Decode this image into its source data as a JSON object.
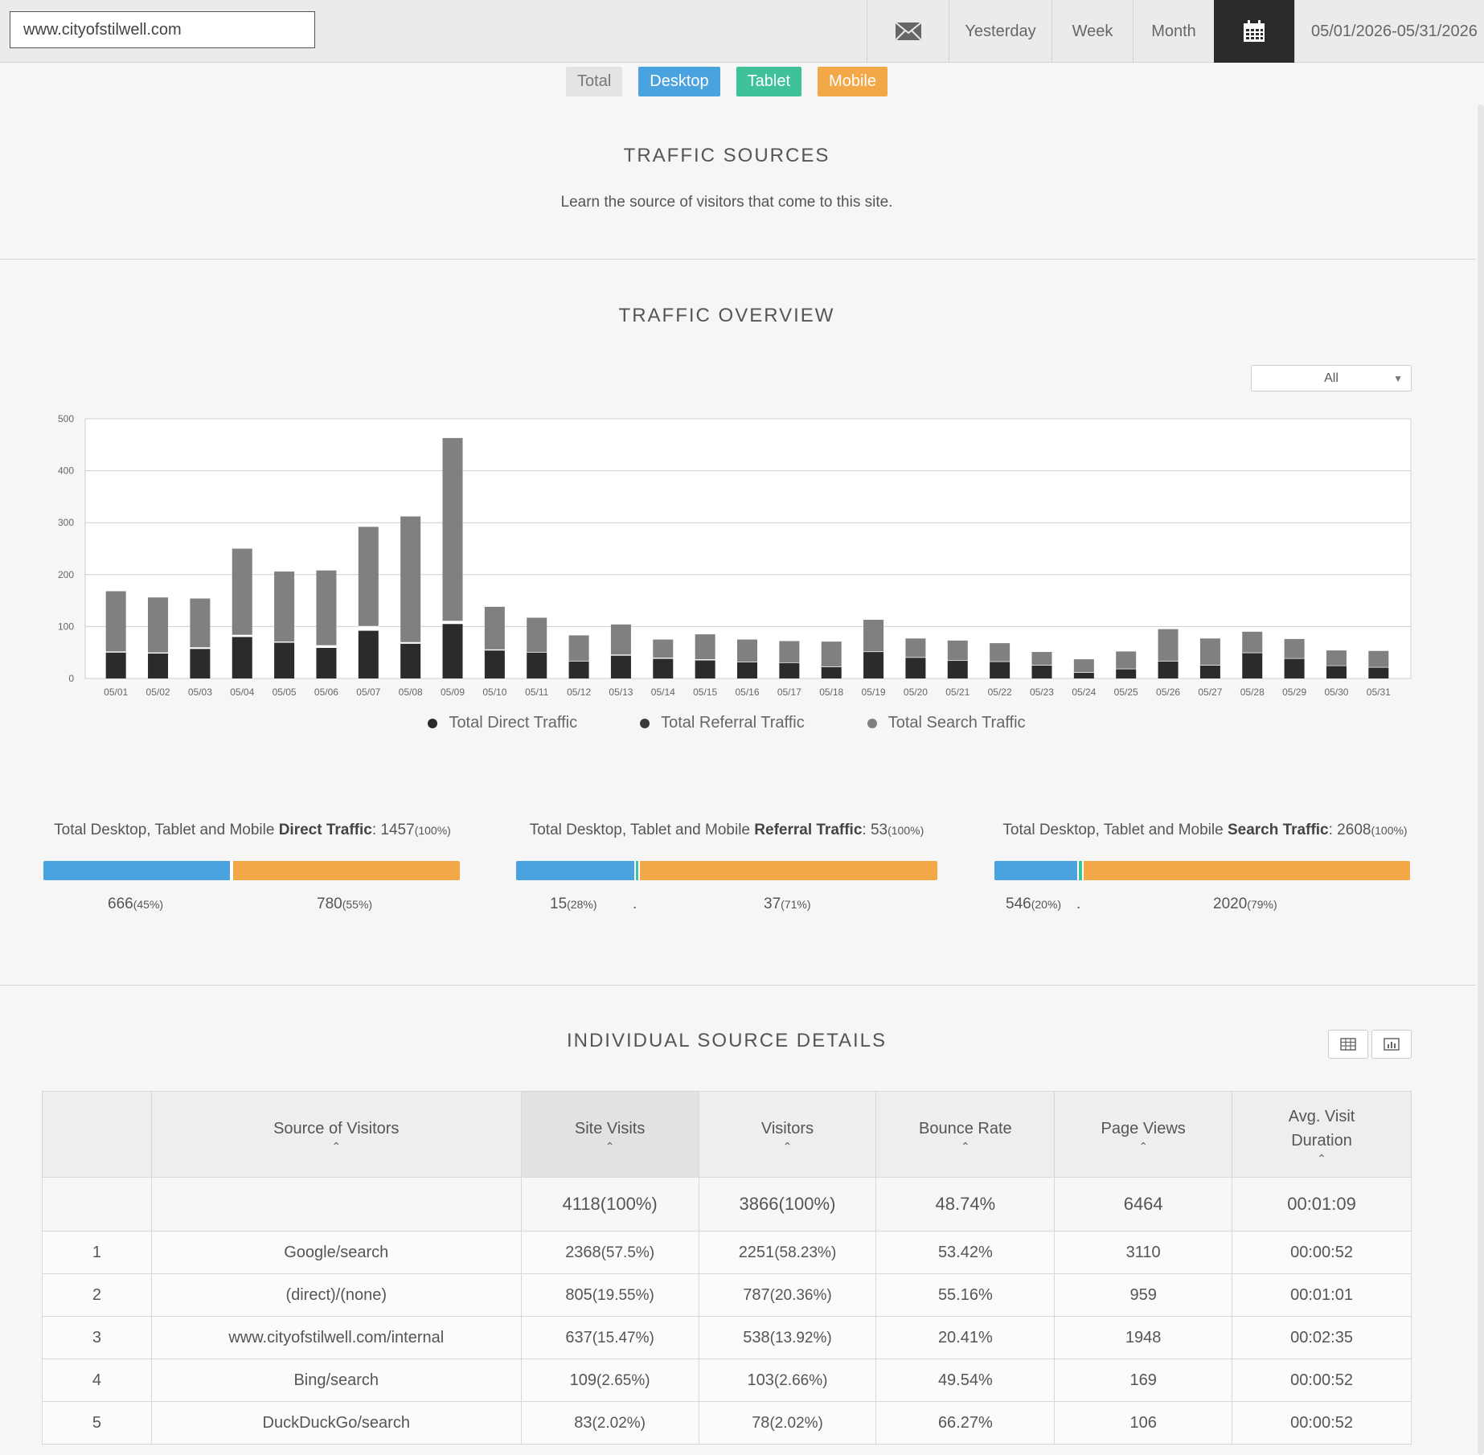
{
  "topbar": {
    "site_value": "www.cityofstilwell.com",
    "mail_icon": "mail-icon",
    "yesterday_label": "Yesterday",
    "week_label": "Week",
    "month_label": "Month",
    "calendar_icon": "calendar-icon",
    "date_range": "05/01/2026-05/31/2026"
  },
  "filters": {
    "total": "Total",
    "desktop": "Desktop",
    "tablet": "Tablet",
    "mobile": "Mobile"
  },
  "colors": {
    "desktop": "#4aa3df",
    "tablet": "#3fc19a",
    "mobile": "#f3a847",
    "direct": "#2b2b2b",
    "referral": "#ffffff",
    "search": "#808080"
  },
  "sources": {
    "title": "TRAFFIC  SOURCES",
    "subtitle": "Learn the source of visitors that come to this site."
  },
  "overview": {
    "title": "TRAFFIC  OVERVIEW",
    "select_value": "All"
  },
  "chart_data": {
    "type": "bar",
    "stacked": true,
    "categories": [
      "05/01",
      "05/02",
      "05/03",
      "05/04",
      "05/05",
      "05/06",
      "05/07",
      "05/08",
      "05/09",
      "05/10",
      "05/11",
      "05/12",
      "05/13",
      "05/14",
      "05/15",
      "05/16",
      "05/17",
      "05/18",
      "05/19",
      "05/20",
      "05/21",
      "05/22",
      "05/23",
      "05/24",
      "05/25",
      "05/26",
      "05/27",
      "05/28",
      "05/29",
      "05/30",
      "05/31"
    ],
    "series": [
      {
        "name": "Total Direct Traffic",
        "color": "#2b2b2b",
        "values": [
          50,
          48,
          57,
          80,
          69,
          59,
          92,
          67,
          105,
          54,
          50,
          33,
          44,
          38,
          35,
          31,
          30,
          22,
          51,
          40,
          34,
          32,
          25,
          11,
          18,
          33,
          25,
          49,
          38,
          24,
          21
        ]
      },
      {
        "name": "Total Referral Traffic",
        "color": "#ffffff",
        "values": [
          2,
          2,
          3,
          4,
          2,
          5,
          9,
          3,
          6,
          2,
          1,
          1,
          2,
          2,
          2,
          1,
          1,
          1,
          1,
          1,
          1,
          1,
          1,
          1,
          1,
          1,
          1,
          1,
          1,
          1,
          1
        ]
      },
      {
        "name": "Total Search Traffic",
        "color": "#808080",
        "values": [
          116,
          106,
          94,
          166,
          135,
          144,
          191,
          242,
          352,
          82,
          66,
          49,
          58,
          35,
          48,
          43,
          41,
          48,
          61,
          36,
          38,
          35,
          25,
          25,
          33,
          61,
          51,
          40,
          37,
          29,
          31
        ]
      }
    ],
    "ylim": [
      0,
      500
    ],
    "yticks": [
      0,
      100,
      200,
      300,
      400,
      500
    ],
    "grid": true,
    "legend": "bottom"
  },
  "summaries": [
    {
      "prefix": "Total Desktop, Tablet and Mobile ",
      "bold": "Direct Traffic",
      "value": ": 1457",
      "pct": "(100%)",
      "segments": [
        0.45,
        0.0,
        0.55
      ],
      "labels": [
        {
          "value": "666",
          "pct": "(45%)"
        },
        {
          "value": "",
          "pct": ""
        },
        {
          "value": "780",
          "pct": "(55%)"
        }
      ]
    },
    {
      "prefix": "Total Desktop, Tablet and Mobile ",
      "bold": "Referral Traffic",
      "value": ": 53",
      "pct": "(100%)",
      "segments": [
        0.28,
        0.01,
        0.71
      ],
      "labels": [
        {
          "value": "15",
          "pct": "(28%)"
        },
        {
          "value": ".",
          "pct": ""
        },
        {
          "value": "37",
          "pct": "(71%)"
        }
      ]
    },
    {
      "prefix": "Total Desktop, Tablet and Mobile ",
      "bold": "Search Traffic",
      "value": ": 2608",
      "pct": "(100%)",
      "segments": [
        0.2,
        0.01,
        0.79
      ],
      "labels": [
        {
          "value": "546",
          "pct": "(20%)"
        },
        {
          "value": ".",
          "pct": ""
        },
        {
          "value": "2020",
          "pct": "(79%)"
        }
      ]
    }
  ],
  "details": {
    "title": "INDIVIDUAL  SOURCE  DETAILS",
    "table_view_icon": "table-view-icon",
    "chart_view_icon": "chart-view-icon",
    "columns": [
      "",
      "Source of Visitors",
      "Site Visits",
      "Visitors",
      "Bounce Rate",
      "Page Views",
      "Avg. Visit\nDuration"
    ],
    "totals": [
      "",
      "",
      "4118(100%)",
      "3866(100%)",
      "48.74%",
      "6464",
      "00:01:09"
    ],
    "rows": [
      {
        "rank": "1",
        "source": "Google/search",
        "visits": "2368",
        "visits_pct": "(57.5%)",
        "visitors": "2251",
        "visitors_pct": "(58.23%)",
        "bounce": "53.42%",
        "views": "3110",
        "duration": "00:00:52"
      },
      {
        "rank": "2",
        "source": "(direct)/(none)",
        "visits": "805",
        "visits_pct": "(19.55%)",
        "visitors": "787",
        "visitors_pct": "(20.36%)",
        "bounce": "55.16%",
        "views": "959",
        "duration": "00:01:01"
      },
      {
        "rank": "3",
        "source": "www.cityofstilwell.com/internal",
        "visits": "637",
        "visits_pct": "(15.47%)",
        "visitors": "538",
        "visitors_pct": "(13.92%)",
        "bounce": "20.41%",
        "views": "1948",
        "duration": "00:02:35"
      },
      {
        "rank": "4",
        "source": "Bing/search",
        "visits": "109",
        "visits_pct": "(2.65%)",
        "visitors": "103",
        "visitors_pct": "(2.66%)",
        "bounce": "49.54%",
        "views": "169",
        "duration": "00:00:52"
      },
      {
        "rank": "5",
        "source": "DuckDuckGo/search",
        "visits": "83",
        "visits_pct": "(2.02%)",
        "visitors": "78",
        "visitors_pct": "(2.02%)",
        "bounce": "66.27%",
        "views": "106",
        "duration": "00:00:52"
      }
    ]
  }
}
